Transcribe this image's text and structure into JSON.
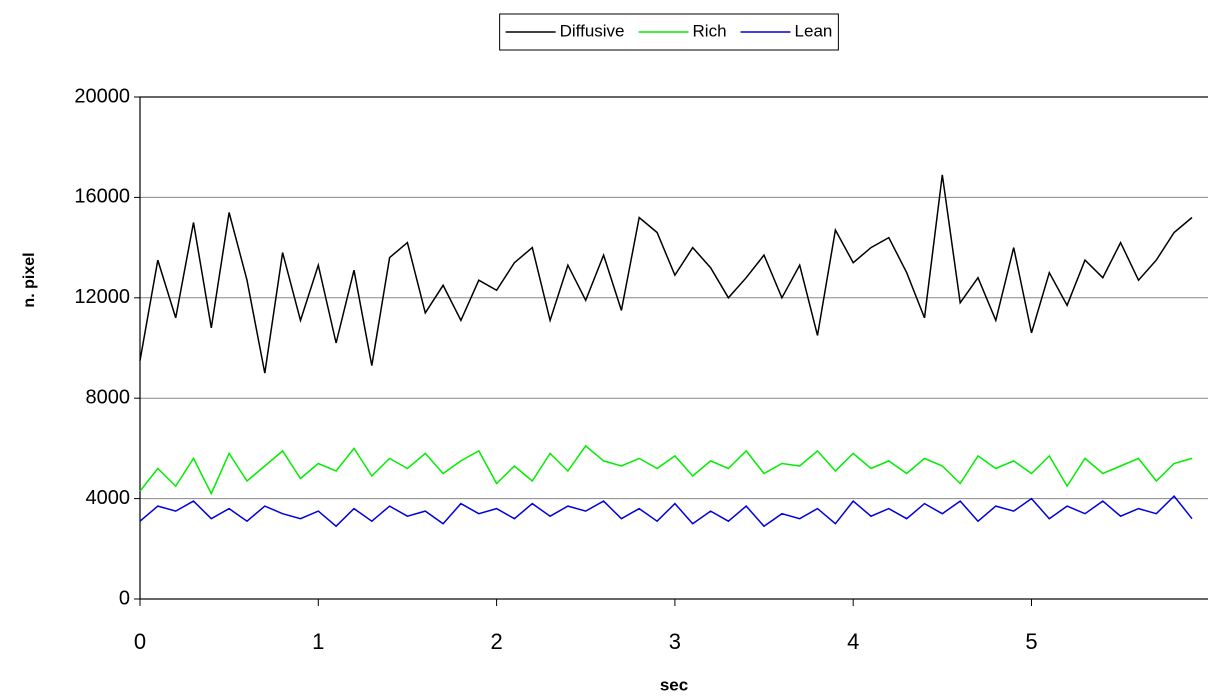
{
  "chart_data": {
    "type": "line",
    "x_label": "sec",
    "y_label": "n. pixel",
    "x": [
      0,
      0.1,
      0.2,
      0.3,
      0.4,
      0.5,
      0.6,
      0.7,
      0.8,
      0.9,
      1,
      1.1,
      1.2,
      1.3,
      1.4,
      1.5,
      1.6,
      1.7,
      1.8,
      1.9,
      2,
      2.1,
      2.2,
      2.3,
      2.4,
      2.5,
      2.6,
      2.7,
      2.8,
      2.9,
      3,
      3.1,
      3.2,
      3.3,
      3.4,
      3.5,
      3.6,
      3.7,
      3.8,
      3.9,
      4,
      4.1,
      4.2,
      4.3,
      4.4,
      4.5,
      4.6,
      4.7,
      4.8,
      4.9,
      5,
      5.1,
      5.2,
      5.3,
      5.4,
      5.5,
      5.6,
      5.7,
      5.8,
      5.9
    ],
    "series": [
      {
        "name": "Diffusive",
        "color": "#000000",
        "values": [
          9500,
          13500,
          11200,
          15000,
          10800,
          15400,
          12700,
          9000,
          13800,
          11100,
          13300,
          10200,
          13100,
          9300,
          13600,
          14200,
          11400,
          12500,
          11100,
          12700,
          12300,
          13400,
          14000,
          11100,
          13300,
          11900,
          13700,
          11500,
          15200,
          14600,
          12900,
          14000,
          13200,
          12000,
          12800,
          13700,
          12000,
          13300,
          10500,
          14700,
          13400,
          14000,
          14400,
          13000,
          11200,
          16900,
          11800,
          12800,
          11100,
          14000,
          10600,
          13000,
          11700,
          13500,
          12800,
          14200,
          12700,
          13500,
          14600,
          15200
        ]
      },
      {
        "name": "Rich",
        "color": "#00ee00",
        "values": [
          4300,
          5200,
          4500,
          5600,
          4200,
          5800,
          4700,
          5300,
          5900,
          4800,
          5400,
          5100,
          6000,
          4900,
          5600,
          5200,
          5800,
          5000,
          5500,
          5900,
          4600,
          5300,
          4700,
          5800,
          5100,
          6100,
          5500,
          5300,
          5600,
          5200,
          5700,
          4900,
          5500,
          5200,
          5900,
          5000,
          5400,
          5300,
          5900,
          5100,
          5800,
          5200,
          5500,
          5000,
          5600,
          5300,
          4600,
          5700,
          5200,
          5500,
          5000,
          5700,
          4500,
          5600,
          5000,
          5300,
          5600,
          4700,
          5400,
          5600
        ]
      },
      {
        "name": "Lean",
        "color": "#0000dd",
        "values": [
          3100,
          3700,
          3500,
          3900,
          3200,
          3600,
          3100,
          3700,
          3400,
          3200,
          3500,
          2900,
          3600,
          3100,
          3700,
          3300,
          3500,
          3000,
          3800,
          3400,
          3600,
          3200,
          3800,
          3300,
          3700,
          3500,
          3900,
          3200,
          3600,
          3100,
          3800,
          3000,
          3500,
          3100,
          3700,
          2900,
          3400,
          3200,
          3600,
          3000,
          3900,
          3300,
          3600,
          3200,
          3800,
          3400,
          3900,
          3100,
          3700,
          3500,
          4000,
          3200,
          3700,
          3400,
          3900,
          3300,
          3600,
          3400,
          4100,
          3200
        ]
      }
    ],
    "xlim": [
      0,
      5.99
    ],
    "xticks": [
      0,
      1,
      2,
      3,
      4,
      5
    ],
    "ylim": [
      0,
      20000
    ],
    "yticks": [
      0,
      4000,
      8000,
      12000,
      16000,
      20000
    ],
    "grid": true,
    "legend": "top"
  }
}
